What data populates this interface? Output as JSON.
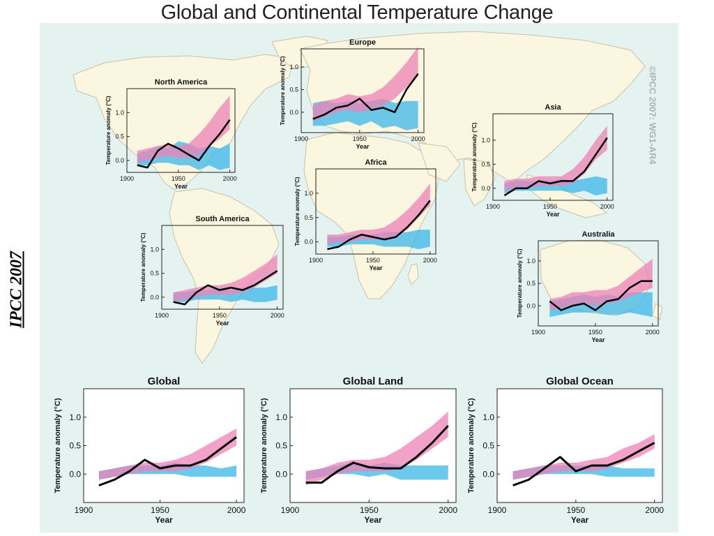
{
  "title": "Global and Continental Temperature Change",
  "side_label": "IPCC 2007",
  "watermark": "©IPCC 2007: WG1-AR4",
  "colors": {
    "natural_band": "#3cb6e8",
    "anthropogenic_band": "#ee82b6",
    "observed_line": "#000000",
    "ocean": "#e4f2f0",
    "land": "#fbf6df"
  },
  "chart_data": [
    {
      "type": "line",
      "title": "North America",
      "xlabel": "Year",
      "ylabel": "Temperature anomaly (°C)",
      "xticks": [
        1900,
        1950,
        2000
      ],
      "yticks": [
        0.0,
        0.5,
        1.0
      ],
      "ytick_labels": [
        "0.0",
        "0.5",
        "1.0"
      ],
      "xlim": [
        1900,
        2005
      ],
      "ylim": [
        -0.25,
        1.5
      ],
      "x": [
        1910,
        1920,
        1930,
        1940,
        1950,
        1960,
        1970,
        1980,
        1990,
        2000
      ],
      "observed": [
        -0.1,
        -0.15,
        0.2,
        0.35,
        0.25,
        0.12,
        0.0,
        0.3,
        0.55,
        0.85
      ],
      "natural_band": {
        "lower": [
          -0.1,
          -0.1,
          -0.05,
          -0.05,
          -0.1,
          -0.1,
          -0.2,
          -0.1,
          -0.2,
          -0.15
        ],
        "upper": [
          0.15,
          0.2,
          0.3,
          0.25,
          0.4,
          0.35,
          0.25,
          0.3,
          0.25,
          0.35
        ]
      },
      "anthropogenic_band": {
        "lower": [
          -0.05,
          0.0,
          0.05,
          0.1,
          0.05,
          0.05,
          0.1,
          0.3,
          0.45,
          0.65
        ],
        "upper": [
          0.2,
          0.25,
          0.3,
          0.35,
          0.3,
          0.35,
          0.55,
          0.8,
          1.1,
          1.35
        ]
      }
    },
    {
      "type": "line",
      "title": "Europe",
      "xlabel": "Year",
      "ylabel": "Temperature anomaly (°C)",
      "xticks": [
        1900,
        1950,
        2000
      ],
      "yticks": [
        0.0,
        0.5,
        1.0
      ],
      "ytick_labels": [
        "0.0",
        "0.5",
        "1.0"
      ],
      "xlim": [
        1900,
        2005
      ],
      "ylim": [
        -0.45,
        1.4
      ],
      "x": [
        1910,
        1920,
        1930,
        1940,
        1950,
        1960,
        1970,
        1980,
        1990,
        2000
      ],
      "observed": [
        -0.15,
        -0.05,
        0.1,
        0.15,
        0.3,
        0.05,
        0.1,
        0.0,
        0.5,
        0.85
      ],
      "natural_band": {
        "lower": [
          -0.3,
          -0.3,
          -0.25,
          -0.2,
          -0.3,
          -0.2,
          -0.35,
          -0.3,
          -0.4,
          -0.35
        ],
        "upper": [
          0.2,
          0.25,
          0.2,
          0.25,
          0.2,
          0.25,
          0.3,
          0.2,
          0.25,
          0.25
        ]
      },
      "anthropogenic_band": {
        "lower": [
          -0.2,
          -0.1,
          0.0,
          0.05,
          0.0,
          0.05,
          0.15,
          0.3,
          0.55,
          0.8
        ],
        "upper": [
          0.15,
          0.25,
          0.3,
          0.4,
          0.35,
          0.4,
          0.55,
          0.8,
          1.1,
          1.45
        ]
      }
    },
    {
      "type": "line",
      "title": "Asia",
      "xlabel": "Year",
      "ylabel": "Temperature anomaly (°C)",
      "xticks": [
        1900,
        1950,
        2000
      ],
      "yticks": [
        0.0,
        0.5,
        1.0
      ],
      "ytick_labels": [
        "0.0",
        "0.5",
        "1.0"
      ],
      "xlim": [
        1900,
        2005
      ],
      "ylim": [
        -0.25,
        1.55
      ],
      "x": [
        1910,
        1920,
        1930,
        1940,
        1950,
        1960,
        1970,
        1980,
        1990,
        2000
      ],
      "observed": [
        -0.15,
        0.0,
        0.0,
        0.15,
        0.1,
        0.15,
        0.15,
        0.35,
        0.7,
        1.05
      ],
      "natural_band": {
        "lower": [
          -0.1,
          -0.05,
          -0.05,
          -0.05,
          -0.05,
          -0.05,
          -0.1,
          -0.05,
          -0.15,
          -0.1
        ],
        "upper": [
          0.1,
          0.15,
          0.15,
          0.15,
          0.15,
          0.2,
          0.15,
          0.2,
          0.25,
          0.2
        ]
      },
      "anthropogenic_band": {
        "lower": [
          -0.05,
          0.0,
          0.0,
          0.05,
          0.05,
          0.05,
          0.1,
          0.3,
          0.6,
          0.8
        ],
        "upper": [
          0.15,
          0.2,
          0.2,
          0.25,
          0.25,
          0.25,
          0.4,
          0.65,
          1.0,
          1.3
        ]
      }
    },
    {
      "type": "line",
      "title": "Africa",
      "xlabel": "Year",
      "ylabel": "Temperature anomaly (°C)",
      "xticks": [
        1900,
        1950,
        2000
      ],
      "yticks": [
        0.0,
        0.5,
        1.0
      ],
      "ytick_labels": [
        "0.0",
        "0.5",
        "1.0"
      ],
      "xlim": [
        1900,
        2005
      ],
      "ylim": [
        -0.25,
        1.5
      ],
      "x": [
        1910,
        1920,
        1930,
        1940,
        1950,
        1960,
        1970,
        1980,
        1990,
        2000
      ],
      "observed": [
        -0.15,
        -0.1,
        0.05,
        0.15,
        0.1,
        0.05,
        0.1,
        0.3,
        0.55,
        0.85
      ],
      "natural_band": {
        "lower": [
          -0.1,
          -0.1,
          -0.05,
          -0.05,
          -0.05,
          -0.1,
          -0.1,
          -0.1,
          -0.15,
          -0.1
        ],
        "upper": [
          0.1,
          0.1,
          0.15,
          0.15,
          0.15,
          0.2,
          0.2,
          0.2,
          0.25,
          0.25
        ]
      },
      "anthropogenic_band": {
        "lower": [
          -0.05,
          0.0,
          0.0,
          0.05,
          0.05,
          0.05,
          0.1,
          0.25,
          0.5,
          0.75
        ],
        "upper": [
          0.15,
          0.15,
          0.2,
          0.25,
          0.25,
          0.3,
          0.45,
          0.65,
          0.9,
          1.2
        ]
      }
    },
    {
      "type": "line",
      "title": "South America",
      "xlabel": "Year",
      "ylabel": "Temperature anomaly (°C)",
      "xticks": [
        1900,
        1950,
        2000
      ],
      "yticks": [
        0.0,
        0.5,
        1.0
      ],
      "ytick_labels": [
        "0.0",
        "0.5",
        "1.0"
      ],
      "xlim": [
        1900,
        2005
      ],
      "ylim": [
        -0.25,
        1.5
      ],
      "x": [
        1910,
        1920,
        1930,
        1940,
        1950,
        1960,
        1970,
        1980,
        1990,
        2000
      ],
      "observed": [
        -0.1,
        -0.15,
        0.1,
        0.25,
        0.15,
        0.2,
        0.15,
        0.25,
        0.4,
        0.55
      ],
      "natural_band": {
        "lower": [
          -0.1,
          -0.1,
          -0.05,
          -0.05,
          -0.05,
          -0.1,
          -0.05,
          -0.1,
          -0.1,
          -0.05
        ],
        "upper": [
          0.1,
          0.1,
          0.15,
          0.15,
          0.2,
          0.15,
          0.2,
          0.2,
          0.2,
          0.25
        ]
      },
      "anthropogenic_band": {
        "lower": [
          -0.1,
          -0.05,
          0.0,
          0.05,
          0.05,
          0.05,
          0.1,
          0.2,
          0.35,
          0.5
        ],
        "upper": [
          0.1,
          0.15,
          0.2,
          0.25,
          0.25,
          0.3,
          0.4,
          0.55,
          0.7,
          0.9
        ]
      }
    },
    {
      "type": "line",
      "title": "Australia",
      "xlabel": "Year",
      "ylabel": "Temperature anomaly (°C)",
      "xticks": [
        1900,
        1950,
        2000
      ],
      "yticks": [
        0.0,
        0.5,
        1.0
      ],
      "ytick_labels": [
        "0.0",
        "0.5",
        "1.0"
      ],
      "xlim": [
        1900,
        2005
      ],
      "ylim": [
        -0.45,
        1.45
      ],
      "x": [
        1910,
        1920,
        1930,
        1940,
        1950,
        1960,
        1970,
        1980,
        1990,
        2000
      ],
      "observed": [
        0.1,
        -0.1,
        0.0,
        0.05,
        -0.1,
        0.1,
        0.15,
        0.4,
        0.55,
        0.55
      ],
      "natural_band": {
        "lower": [
          -0.25,
          -0.2,
          -0.15,
          -0.15,
          -0.15,
          -0.2,
          -0.2,
          -0.15,
          -0.2,
          -0.25
        ],
        "upper": [
          0.1,
          0.15,
          0.2,
          0.25,
          0.2,
          0.25,
          0.2,
          0.3,
          0.3,
          0.3
        ]
      },
      "anthropogenic_band": {
        "lower": [
          -0.1,
          -0.05,
          0.0,
          0.05,
          0.0,
          0.05,
          0.1,
          0.2,
          0.3,
          0.4
        ],
        "upper": [
          0.15,
          0.2,
          0.3,
          0.3,
          0.35,
          0.35,
          0.45,
          0.65,
          0.85,
          1.05
        ]
      }
    },
    {
      "type": "line",
      "title": "Global",
      "xlabel": "Year",
      "ylabel": "Temperature anomaly (°C)",
      "xticks": [
        1900,
        1950,
        2000
      ],
      "yticks": [
        0.0,
        0.5,
        1.0
      ],
      "ytick_labels": [
        "0.0",
        "0.5",
        "1.0"
      ],
      "xlim": [
        1900,
        2005
      ],
      "ylim": [
        -0.5,
        1.5
      ],
      "x": [
        1910,
        1920,
        1930,
        1940,
        1950,
        1960,
        1970,
        1980,
        1990,
        2000
      ],
      "observed": [
        -0.2,
        -0.1,
        0.05,
        0.25,
        0.1,
        0.15,
        0.15,
        0.25,
        0.45,
        0.65
      ],
      "natural_band": {
        "lower": [
          -0.1,
          -0.05,
          0.0,
          0.0,
          0.0,
          0.0,
          -0.05,
          -0.05,
          -0.05,
          -0.05
        ],
        "upper": [
          0.05,
          0.1,
          0.15,
          0.15,
          0.15,
          0.2,
          0.15,
          0.15,
          0.1,
          0.15
        ]
      },
      "anthropogenic_band": {
        "lower": [
          -0.1,
          -0.05,
          0.0,
          0.05,
          0.05,
          0.05,
          0.1,
          0.2,
          0.35,
          0.5
        ],
        "upper": [
          0.05,
          0.1,
          0.15,
          0.2,
          0.2,
          0.25,
          0.35,
          0.5,
          0.65,
          0.8
        ]
      }
    },
    {
      "type": "line",
      "title": "Global Land",
      "xlabel": "Year",
      "ylabel": "Temperature anomaly (°C)",
      "xticks": [
        1900,
        1950,
        2000
      ],
      "yticks": [
        0.0,
        0.5,
        1.0
      ],
      "ytick_labels": [
        "0.0",
        "0.5",
        "1.0"
      ],
      "xlim": [
        1900,
        2005
      ],
      "ylim": [
        -0.5,
        1.5
      ],
      "x": [
        1910,
        1920,
        1930,
        1940,
        1950,
        1960,
        1970,
        1980,
        1990,
        2000
      ],
      "observed": [
        -0.15,
        -0.15,
        0.05,
        0.2,
        0.12,
        0.1,
        0.1,
        0.3,
        0.55,
        0.85
      ],
      "natural_band": {
        "lower": [
          -0.1,
          -0.05,
          0.0,
          0.0,
          -0.05,
          0.0,
          -0.1,
          -0.1,
          -0.1,
          -0.1
        ],
        "upper": [
          0.05,
          0.1,
          0.15,
          0.2,
          0.15,
          0.2,
          0.15,
          0.15,
          0.15,
          0.15
        ]
      },
      "anthropogenic_band": {
        "lower": [
          -0.2,
          -0.1,
          0.0,
          0.05,
          0.05,
          0.05,
          0.1,
          0.25,
          0.45,
          0.65
        ],
        "upper": [
          0.05,
          0.1,
          0.2,
          0.25,
          0.25,
          0.3,
          0.45,
          0.65,
          0.85,
          1.1
        ]
      }
    },
    {
      "type": "line",
      "title": "Global Ocean",
      "xlabel": "Year",
      "ylabel": "Temperature anomaly (°C)",
      "xticks": [
        1900,
        1950,
        2000
      ],
      "yticks": [
        0.0,
        0.5,
        1.0
      ],
      "ytick_labels": [
        "0.0",
        "0.5",
        "1.0"
      ],
      "xlim": [
        1900,
        2005
      ],
      "ylim": [
        -0.5,
        1.5
      ],
      "x": [
        1910,
        1920,
        1930,
        1940,
        1950,
        1960,
        1970,
        1980,
        1990,
        2000
      ],
      "observed": [
        -0.2,
        -0.1,
        0.1,
        0.3,
        0.05,
        0.15,
        0.15,
        0.25,
        0.4,
        0.55
      ],
      "natural_band": {
        "lower": [
          -0.1,
          -0.05,
          0.0,
          0.0,
          0.0,
          0.0,
          -0.05,
          -0.05,
          -0.05,
          -0.05
        ],
        "upper": [
          0.05,
          0.1,
          0.15,
          0.15,
          0.15,
          0.15,
          0.15,
          0.1,
          0.1,
          0.1
        ]
      },
      "anthropogenic_band": {
        "lower": [
          -0.1,
          -0.05,
          0.0,
          0.05,
          0.05,
          0.05,
          0.1,
          0.2,
          0.3,
          0.45
        ],
        "upper": [
          0.05,
          0.1,
          0.15,
          0.2,
          0.2,
          0.25,
          0.3,
          0.45,
          0.55,
          0.7
        ]
      }
    }
  ]
}
